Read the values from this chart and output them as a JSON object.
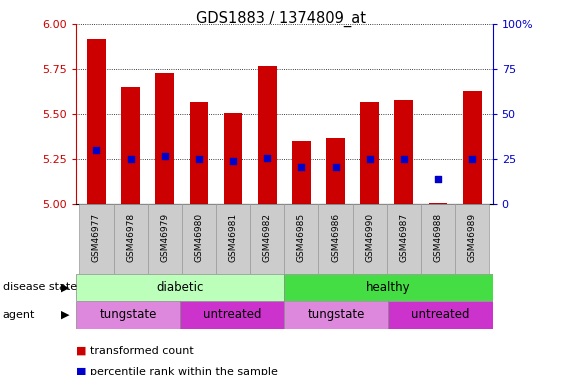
{
  "title": "GDS1883 / 1374809_at",
  "samples": [
    "GSM46977",
    "GSM46978",
    "GSM46979",
    "GSM46980",
    "GSM46981",
    "GSM46982",
    "GSM46985",
    "GSM46986",
    "GSM46990",
    "GSM46987",
    "GSM46988",
    "GSM46989"
  ],
  "transformed_count": [
    5.92,
    5.65,
    5.73,
    5.57,
    5.51,
    5.77,
    5.35,
    5.37,
    5.57,
    5.58,
    5.01,
    5.63
  ],
  "percentile_rank": [
    30,
    25,
    27,
    25,
    24,
    26,
    21,
    21,
    25,
    25,
    14,
    25
  ],
  "ylim_left": [
    5.0,
    6.0
  ],
  "ylim_right": [
    0,
    100
  ],
  "yticks_left": [
    5.0,
    5.25,
    5.5,
    5.75,
    6.0
  ],
  "yticks_right": [
    0,
    25,
    50,
    75,
    100
  ],
  "bar_color": "#cc0000",
  "dot_color": "#0000cc",
  "bar_bottom": 5.0,
  "disease_state_groups": [
    {
      "label": "diabetic",
      "start": 0,
      "end": 6,
      "color": "#bbffbb"
    },
    {
      "label": "healthy",
      "start": 6,
      "end": 12,
      "color": "#44dd44"
    }
  ],
  "agent_groups": [
    {
      "label": "tungstate",
      "start": 0,
      "end": 3,
      "color": "#dd88dd"
    },
    {
      "label": "untreated",
      "start": 3,
      "end": 6,
      "color": "#cc33cc"
    },
    {
      "label": "tungstate",
      "start": 6,
      "end": 9,
      "color": "#dd88dd"
    },
    {
      "label": "untreated",
      "start": 9,
      "end": 12,
      "color": "#cc33cc"
    }
  ],
  "legend_items": [
    {
      "label": "transformed count",
      "color": "#cc0000"
    },
    {
      "label": "percentile rank within the sample",
      "color": "#0000cc"
    }
  ],
  "left_axis_color": "#cc0000",
  "right_axis_color": "#0000cc",
  "sample_bg": "#cccccc",
  "figure_width": 5.63,
  "figure_height": 3.75,
  "figure_dpi": 100
}
